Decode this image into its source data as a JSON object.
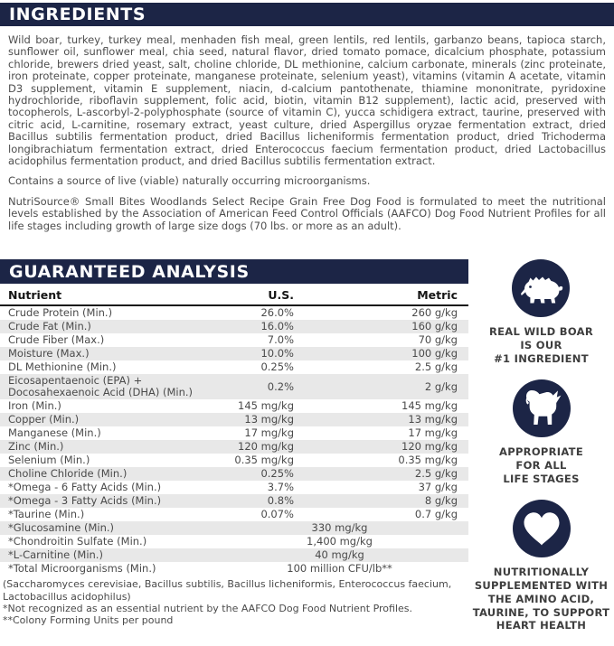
{
  "colors": {
    "navy": "#1c2546",
    "row_alt": "#e8e8e8",
    "body_text": "#4d4d4d",
    "header_text": "#ffffff"
  },
  "ingredients": {
    "header": "INGREDIENTS",
    "body": "Wild boar, turkey, turkey meal, menhaden fish meal, green lentils, red lentils, garbanzo beans, tapioca starch, sunflower oil, sunflower meal, chia seed, natural flavor, dried tomato pomace, dicalcium phosphate, potassium chloride, brewers dried yeast, salt, choline chloride, DL methionine, calcium carbonate, minerals (zinc proteinate, iron proteinate, copper proteinate, manganese proteinate, selenium yeast), vitamins (vitamin A acetate, vitamin D3 supplement, vitamin E supplement, niacin, d-calcium pantothenate, thiamine mononitrate, pyridoxine hydrochloride, riboflavin supplement, folic acid, biotin, vitamin B12 supplement), lactic acid, preserved with tocopherols, L-ascorbyl-2-polyphosphate (source of vitamin C), yucca schidigera extract, taurine, preserved with citric acid, L-carnitine, rosemary extract, yeast culture, dried Aspergillus oryzae fermentation extract, dried Bacillus subtilis fermentation product, dried Bacillus licheniformis fermentation product, dried Trichoderma longibrachiatum fermentation extract, dried Enterococcus faecium fermentation product, dried Lactobacillus acidophilus fermentation product, and dried Bacillus subtilis fermentation extract.",
    "microorganisms_note": "Contains a source of live (viable) naturally occurring microorganisms.",
    "aafco_statement": "NutriSource® Small Bites Woodlands Select Recipe Grain Free Dog Food is formulated to meet the nutritional levels established by the Association of American Feed Control Officials (AAFCO) Dog Food Nutrient Profiles for all life stages including growth of large size dogs (70 lbs. or more as an adult)."
  },
  "guaranteed_analysis": {
    "header": "GUARANTEED ANALYSIS",
    "columns": {
      "nutrient": "Nutrient",
      "us": "U.S.",
      "metric": "Metric"
    },
    "rows": [
      {
        "nutrient": "Crude Protein (Min.)",
        "us": "26.0%",
        "metric": "260 g/kg"
      },
      {
        "nutrient": "Crude Fat (Min.)",
        "us": "16.0%",
        "metric": "160 g/kg"
      },
      {
        "nutrient": "Crude Fiber (Max.)",
        "us": "7.0%",
        "metric": "70 g/kg"
      },
      {
        "nutrient": "Moisture (Max.)",
        "us": "10.0%",
        "metric": "100 g/kg"
      },
      {
        "nutrient": "DL Methionine (Min.)",
        "us": "0.25%",
        "metric": "2.5 g/kg"
      },
      {
        "nutrient": "Eicosapentaenoic (EPA) +\nDocosahexaenoic Acid (DHA) (Min.)",
        "us": "0.2%",
        "metric": "2 g/kg"
      },
      {
        "nutrient": "Iron (Min.)",
        "us": "145 mg/kg",
        "metric": "145 mg/kg"
      },
      {
        "nutrient": "Copper (Min.)",
        "us": "13 mg/kg",
        "metric": "13 mg/kg"
      },
      {
        "nutrient": "Manganese (Min.)",
        "us": "17 mg/kg",
        "metric": "17 mg/kg"
      },
      {
        "nutrient": "Zinc (Min.)",
        "us": "120 mg/kg",
        "metric": "120 mg/kg"
      },
      {
        "nutrient": "Selenium (Min.)",
        "us": "0.35 mg/kg",
        "metric": "0.35 mg/kg"
      },
      {
        "nutrient": "Choline Chloride (Min.)",
        "us": "0.25%",
        "metric": "2.5 g/kg"
      },
      {
        "nutrient": "*Omega - 6 Fatty Acids (Min.)",
        "us": "3.7%",
        "metric": "37 g/kg"
      },
      {
        "nutrient": "*Omega - 3 Fatty Acids (Min.)",
        "us": "0.8%",
        "metric": "8 g/kg"
      },
      {
        "nutrient": "*Taurine (Min.)",
        "us": "0.07%",
        "metric": "0.7 g/kg"
      },
      {
        "nutrient": "*Glucosamine (Min.)",
        "combined": "330 mg/kg"
      },
      {
        "nutrient": "*Chondroitin Sulfate (Min.)",
        "combined": "1,400 mg/kg"
      },
      {
        "nutrient": "*L-Carnitine (Min.)",
        "combined": "40 mg/kg"
      },
      {
        "nutrient": "*Total Microorganisms (Min.)",
        "combined": "100 million CFU/lb**"
      }
    ],
    "footnotes": [
      "(Saccharomyces cerevisiae, Bacillus subtilis, Bacillus licheniformis, Enterococcus faecium, Lactobacillus acidophilus)",
      "*Not recognized as an essential nutrient by the AAFCO Dog Food Nutrient Profiles.",
      "**Colony Forming Units per pound"
    ]
  },
  "badges": [
    {
      "icon": "boar-icon",
      "label": "REAL WILD BOAR\nIS OUR\n#1 INGREDIENT"
    },
    {
      "icon": "dog-icon",
      "label": "APPROPRIATE\nFOR ALL\nLIFE STAGES"
    },
    {
      "icon": "heart-icon",
      "label": "NUTRITIONALLY\nSUPPLEMENTED WITH\nTHE AMINO ACID,\nTAURINE, TO SUPPORT\nHEART HEALTH"
    }
  ]
}
